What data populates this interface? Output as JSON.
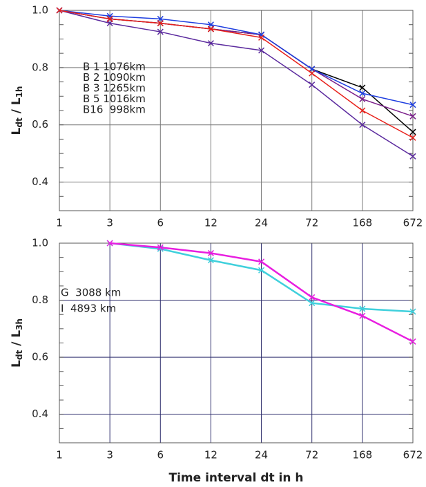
{
  "chart_data": [
    {
      "type": "line",
      "ylabel_parts": [
        "L",
        "dt",
        " / L",
        "1h"
      ],
      "categories": [
        "1",
        "3",
        "6",
        "12",
        "24",
        "72",
        "168",
        "672"
      ],
      "ylim": [
        0.3,
        1.0
      ],
      "yticks": [
        {
          "value": 1.0,
          "label": "1.0"
        },
        {
          "value": 0.8,
          "label": "0.8"
        },
        0.6,
        0.4
      ],
      "grid": true,
      "series": [
        {
          "name": "B 1 1076km",
          "color": "#000000",
          "values": [
            1.0,
            0.97,
            0.955,
            0.935,
            0.915,
            0.795,
            0.73,
            0.575
          ]
        },
        {
          "name": "B 2 1090km",
          "color": "#7a1f8a",
          "values": [
            1.0,
            0.97,
            0.955,
            0.935,
            0.915,
            0.795,
            0.69,
            0.63
          ]
        },
        {
          "name": "B 3 1265km",
          "color": "#5b2a9e",
          "values": [
            1.0,
            0.955,
            0.925,
            0.885,
            0.86,
            0.74,
            0.6,
            0.49
          ]
        },
        {
          "name": "B 5 1016km",
          "color": "#1f3fe0",
          "values": [
            1.0,
            0.98,
            0.97,
            0.95,
            0.915,
            0.795,
            0.71,
            0.67
          ]
        },
        {
          "name": "B16  998km",
          "color": "#e8201a",
          "values": [
            1.0,
            0.97,
            0.955,
            0.935,
            0.905,
            0.78,
            0.65,
            0.555
          ]
        }
      ]
    },
    {
      "type": "line",
      "ylabel_parts": [
        "L",
        "dt",
        " / L",
        "3h"
      ],
      "xlabel": "Time interval dt in h",
      "categories": [
        "1",
        "3",
        "6",
        "12",
        "24",
        "72",
        "168",
        "672"
      ],
      "ylim": [
        0.3,
        1.0
      ],
      "yticks": [
        {
          "value": 1.0,
          "label": "1.0"
        },
        {
          "value": 0.8,
          "label": "0.8"
        },
        0.6,
        0.4
      ],
      "grid": true,
      "series": [
        {
          "name": "G  3088 km",
          "color": "#3fd0dc",
          "values": [
            null,
            1.0,
            0.98,
            0.94,
            0.905,
            0.79,
            0.77,
            0.76
          ]
        },
        {
          "name": "I  4893 km",
          "color": "#e81ee0",
          "values": [
            null,
            1.0,
            0.985,
            0.965,
            0.935,
            0.81,
            0.745,
            0.655
          ]
        }
      ]
    }
  ]
}
